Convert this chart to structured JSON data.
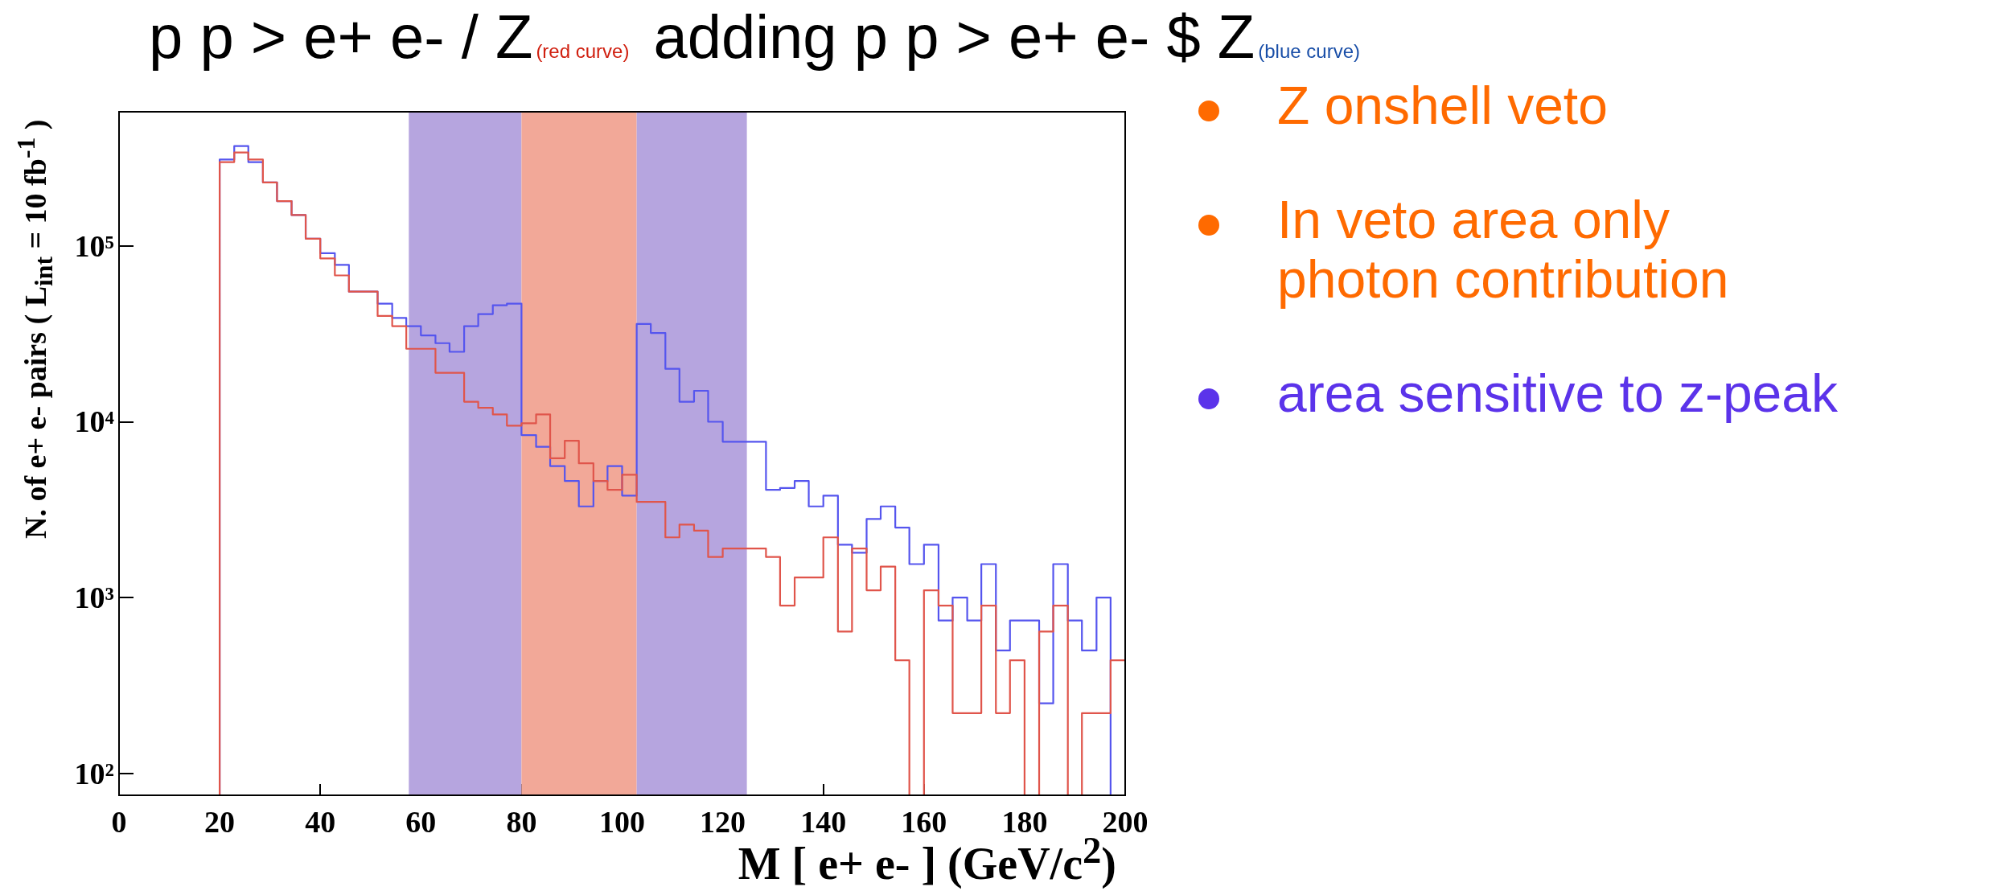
{
  "chart_data": {
    "type": "histogram",
    "title": "p p > e+ e- / Z",
    "xlabel": "M [ e+ e- ] (GeV/c$^{2}$)",
    "ylabel": "N. of e+ e- pairs  ( L$_{int}$ = 10 fb$^{-1}$ )",
    "annotations": [
      "(red curve)",
      "adding p p > e+ e- $ Z",
      "(blue curve)",
      "Z onshell veto",
      "In veto area only photon contribution",
      "area sensitive to z-peak"
    ],
    "bins": [
      20,
      22.9,
      25.7,
      28.6,
      31.4,
      34.3,
      37.1,
      40,
      42.9,
      45.7,
      48.6,
      51.4,
      54.3,
      57.1,
      60,
      62.9,
      65.7,
      68.6,
      71.4,
      74.3,
      77.1,
      80,
      82.9,
      85.7,
      88.6,
      91.4,
      94.3,
      97.1,
      100,
      102.9,
      105.7,
      108.6,
      111.4,
      114.3,
      117.1,
      120,
      122.9,
      125.7,
      128.6,
      131.4,
      134.3,
      137.1,
      140,
      142.9,
      145.7,
      148.6,
      151.4,
      154.3,
      157.1,
      160,
      162.9,
      165.7,
      168.6,
      171.4,
      174.3,
      177.1,
      180,
      182.9,
      185.7,
      188.6,
      191.4,
      194.3,
      197.1,
      200
    ],
    "series": [
      {
        "color": "#5555ee",
        "values": [
          310000,
          370000,
          300000,
          230000,
          180000,
          150000,
          110000,
          91000,
          78000,
          55000,
          55000,
          47000,
          39000,
          35000,
          31000,
          28000,
          25000,
          35000,
          41000,
          46000,
          47000,
          8400,
          7200,
          5600,
          4600,
          3300,
          4600,
          5600,
          3800,
          36000,
          32000,
          20000,
          13000,
          15000,
          10000,
          7700,
          7700,
          7700,
          4100,
          4200,
          4600,
          3300,
          3800,
          2000,
          1800,
          2800,
          3300,
          2500,
          1550,
          2000,
          740,
          1000,
          740,
          1550,
          500,
          740,
          740,
          250,
          1550,
          740,
          500,
          1000,
          null
        ]
      },
      {
        "color": "#e0554b",
        "values": [
          300000,
          340000,
          310000,
          230000,
          180000,
          150000,
          110000,
          85000,
          68000,
          55000,
          55000,
          40000,
          35000,
          26000,
          26000,
          19000,
          19000,
          13000,
          12000,
          11000,
          9500,
          9800,
          11000,
          6200,
          7800,
          5800,
          4600,
          4100,
          5000,
          3500,
          3500,
          2200,
          2600,
          2400,
          1700,
          1900,
          1900,
          1900,
          1700,
          900,
          1300,
          1300,
          2200,
          640,
          1900,
          1100,
          1500,
          440,
          null,
          1100,
          900,
          220,
          220,
          900,
          220,
          440,
          null,
          640,
          900,
          null,
          220,
          220,
          440
        ]
      }
    ],
    "xlim": [
      0,
      200
    ],
    "xticks": [
      0,
      20,
      40,
      60,
      80,
      100,
      120,
      140,
      160,
      180,
      200
    ],
    "ylim": [
      75,
      580000
    ],
    "yticks": [
      {
        "value": 100,
        "label": "10²"
      },
      {
        "value": 1000,
        "label": "10³"
      },
      {
        "value": 10000,
        "label": "10⁴"
      },
      {
        "value": 100000,
        "label": "10⁵"
      }
    ],
    "log": true,
    "bands": [
      {
        "axis": "x",
        "from": 57.6,
        "to": 80,
        "label": null,
        "color": "#b6a5df"
      },
      {
        "axis": "x",
        "from": 80,
        "to": 102.9,
        "label": null,
        "color": "#f2a898"
      },
      {
        "axis": "x",
        "from": 102.9,
        "to": 124.8,
        "label": null,
        "color": "#b6a5df"
      }
    ]
  }
}
